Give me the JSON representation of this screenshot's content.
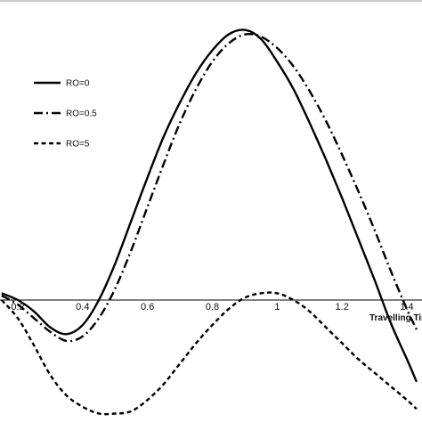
{
  "chart_data": {
    "type": "line",
    "title": "",
    "xlabel": "Travelling Tim",
    "ylabel": "",
    "xlim": [
      0.15,
      1.43
    ],
    "ylim": [
      -0.52,
      1.23
    ],
    "grid": false,
    "legend_position": "left",
    "x_ticks": [
      "0.2",
      "0.4",
      "0.6",
      "0.8",
      "1",
      "1.2",
      "1.4"
    ],
    "series": [
      {
        "name": "RO=0",
        "dash": "solid",
        "color": "#000000",
        "points": [
          [
            0.15,
            0.03
          ],
          [
            0.2,
            0.0
          ],
          [
            0.25,
            -0.05
          ],
          [
            0.3,
            -0.12
          ],
          [
            0.35,
            -0.15
          ],
          [
            0.4,
            -0.11
          ],
          [
            0.45,
            0.0
          ],
          [
            0.5,
            0.16
          ],
          [
            0.55,
            0.35
          ],
          [
            0.6,
            0.54
          ],
          [
            0.65,
            0.72
          ],
          [
            0.7,
            0.87
          ],
          [
            0.75,
            1.0
          ],
          [
            0.8,
            1.1
          ],
          [
            0.85,
            1.17
          ],
          [
            0.9,
            1.19
          ],
          [
            0.95,
            1.15
          ],
          [
            1.0,
            1.05
          ],
          [
            1.05,
            0.93
          ],
          [
            1.1,
            0.78
          ],
          [
            1.15,
            0.62
          ],
          [
            1.2,
            0.45
          ],
          [
            1.25,
            0.27
          ],
          [
            1.3,
            0.09
          ],
          [
            1.35,
            -0.1
          ],
          [
            1.4,
            -0.26
          ],
          [
            1.43,
            -0.36
          ]
        ]
      },
      {
        "name": "RO=0.5",
        "dash": "dashdot",
        "color": "#000000",
        "points": [
          [
            0.15,
            0.02
          ],
          [
            0.2,
            -0.02
          ],
          [
            0.25,
            -0.08
          ],
          [
            0.3,
            -0.14
          ],
          [
            0.35,
            -0.18
          ],
          [
            0.4,
            -0.16
          ],
          [
            0.45,
            -0.08
          ],
          [
            0.5,
            0.05
          ],
          [
            0.55,
            0.22
          ],
          [
            0.6,
            0.41
          ],
          [
            0.65,
            0.6
          ],
          [
            0.7,
            0.78
          ],
          [
            0.75,
            0.93
          ],
          [
            0.8,
            1.05
          ],
          [
            0.85,
            1.13
          ],
          [
            0.9,
            1.17
          ],
          [
            0.95,
            1.16
          ],
          [
            1.0,
            1.11
          ],
          [
            1.05,
            1.03
          ],
          [
            1.1,
            0.92
          ],
          [
            1.15,
            0.79
          ],
          [
            1.2,
            0.64
          ],
          [
            1.25,
            0.48
          ],
          [
            1.3,
            0.31
          ],
          [
            1.35,
            0.13
          ],
          [
            1.4,
            -0.04
          ],
          [
            1.43,
            -0.13
          ]
        ]
      },
      {
        "name": "RO=5",
        "dash": "dashed",
        "color": "#000000",
        "points": [
          [
            0.15,
            0.0
          ],
          [
            0.2,
            -0.08
          ],
          [
            0.25,
            -0.2
          ],
          [
            0.3,
            -0.33
          ],
          [
            0.35,
            -0.42
          ],
          [
            0.4,
            -0.47
          ],
          [
            0.45,
            -0.5
          ],
          [
            0.5,
            -0.5
          ],
          [
            0.55,
            -0.49
          ],
          [
            0.6,
            -0.44
          ],
          [
            0.65,
            -0.37
          ],
          [
            0.7,
            -0.28
          ],
          [
            0.75,
            -0.19
          ],
          [
            0.8,
            -0.11
          ],
          [
            0.85,
            -0.04
          ],
          [
            0.9,
            0.01
          ],
          [
            0.95,
            0.03
          ],
          [
            1.0,
            0.03
          ],
          [
            1.05,
            0.0
          ],
          [
            1.1,
            -0.05
          ],
          [
            1.15,
            -0.12
          ],
          [
            1.2,
            -0.19
          ],
          [
            1.25,
            -0.26
          ],
          [
            1.3,
            -0.32
          ],
          [
            1.35,
            -0.38
          ],
          [
            1.4,
            -0.44
          ],
          [
            1.43,
            -0.48
          ]
        ]
      }
    ]
  }
}
